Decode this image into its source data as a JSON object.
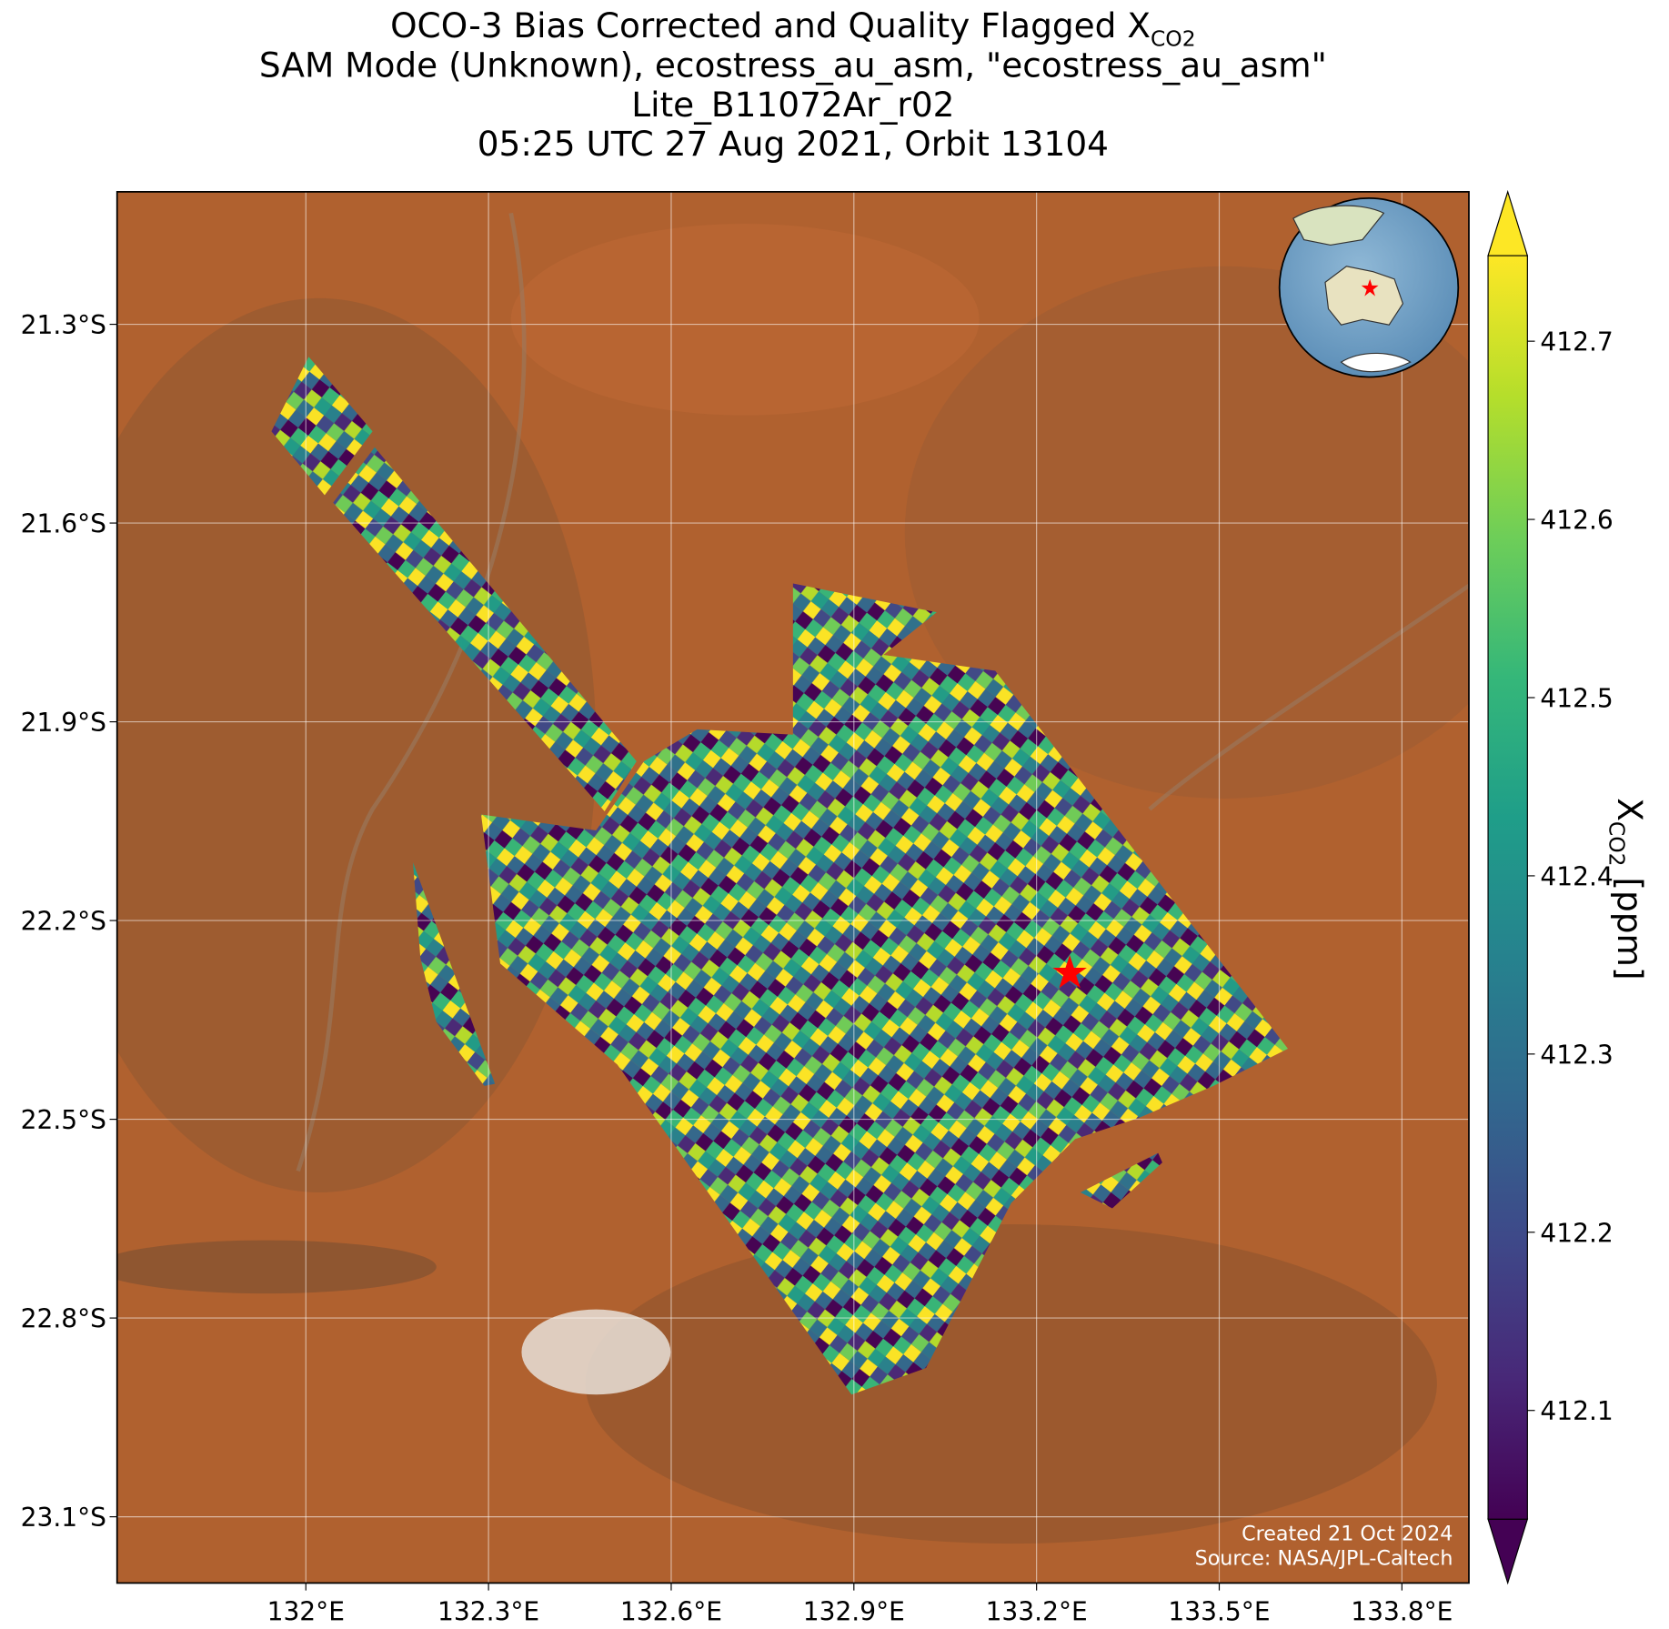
{
  "chart_data": {
    "type": "map",
    "title_lines": [
      {
        "main": "OCO-3 Bias Corrected and Quality Flagged X",
        "sub": "CO2"
      },
      {
        "main": "SAM Mode (Unknown), ecostress_au_asm, \"ecostress_au_asm\""
      },
      {
        "main": "Lite_B11072Ar_r02"
      },
      {
        "main": "05:25 UTC 27 Aug 2021, Orbit 13104"
      }
    ],
    "xlim": [
      131.69,
      133.91
    ],
    "ylim": [
      -23.2,
      -21.1
    ],
    "xticks": [
      {
        "value": 132.0,
        "label": "132°E"
      },
      {
        "value": 132.3,
        "label": "132.3°E"
      },
      {
        "value": 132.6,
        "label": "132.6°E"
      },
      {
        "value": 132.9,
        "label": "132.9°E"
      },
      {
        "value": 133.2,
        "label": "133.2°E"
      },
      {
        "value": 133.5,
        "label": "133.5°E"
      },
      {
        "value": 133.8,
        "label": "133.8°E"
      }
    ],
    "yticks": [
      {
        "value": -21.3,
        "label": "21.3°S"
      },
      {
        "value": -21.6,
        "label": "21.6°S"
      },
      {
        "value": -21.9,
        "label": "21.9°S"
      },
      {
        "value": -22.2,
        "label": "22.2°S"
      },
      {
        "value": -22.5,
        "label": "22.5°S"
      },
      {
        "value": -22.8,
        "label": "22.8°S"
      },
      {
        "value": -23.1,
        "label": "23.1°S"
      }
    ],
    "grid": true,
    "colorbar": {
      "label_main": "X",
      "label_sub": "CO2",
      "label_unit": "[ppm]",
      "clim": [
        412.039,
        412.748
      ],
      "ticks": [
        412.1,
        412.2,
        412.3,
        412.4,
        412.5,
        412.6,
        412.7
      ],
      "colors": [
        "#440154",
        "#482878",
        "#3e4989",
        "#31688e",
        "#26828e",
        "#1f9e89",
        "#35b779",
        "#6ece58",
        "#b5de2b",
        "#fde725"
      ]
    },
    "credits": [
      "Created 21 Oct 2024",
      "Source: NASA/JPL-Caltech"
    ]
  }
}
